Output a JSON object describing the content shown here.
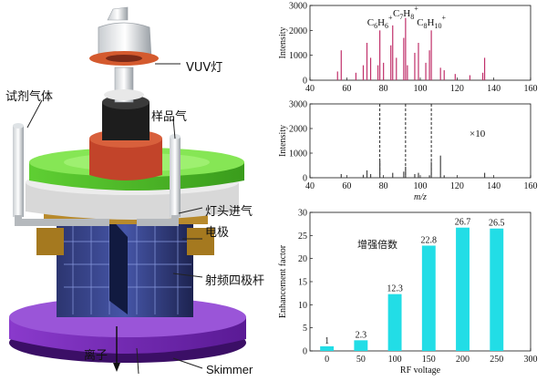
{
  "left_labels": {
    "vuv_lamp": "VUV灯",
    "reagent_gas": "试剂气体",
    "sample_gas": "样品气",
    "lamp_inlet": "灯头进气",
    "electrode": "电极",
    "rf_quadrupole": "射频四极杆",
    "ions": "离子",
    "skimmer": "Skimmer"
  },
  "chart_data": [
    {
      "type": "bar",
      "title": "",
      "xlabel": "",
      "ylabel": "Intensity",
      "xlim": [
        40,
        160
      ],
      "ylim": [
        0,
        3000
      ],
      "xticks": [
        "40",
        "60",
        "80",
        "100",
        "120",
        "140",
        "160"
      ],
      "yticks": [
        "0",
        "1000",
        "2000",
        "3000"
      ],
      "color": "#c0306a",
      "x": [
        55,
        57,
        65,
        69,
        71,
        73,
        77,
        78,
        80,
        84,
        85,
        87,
        91,
        92,
        93,
        97,
        99,
        103,
        105,
        106,
        111,
        113,
        119,
        127,
        134,
        135
      ],
      "values": [
        350,
        1200,
        300,
        600,
        1500,
        900,
        600,
        2000,
        700,
        1400,
        2200,
        900,
        1700,
        2500,
        600,
        1100,
        1500,
        700,
        1200,
        2000,
        500,
        400,
        250,
        200,
        300,
        900
      ],
      "annotations": [
        {
          "text": "C6H6+",
          "x": 78
        },
        {
          "text": "C7H8+",
          "x": 92
        },
        {
          "text": "C8H10+",
          "x": 106
        }
      ]
    },
    {
      "type": "bar",
      "title": "",
      "xlabel": "m/z",
      "ylabel": "Intensity",
      "xlim": [
        40,
        160
      ],
      "ylim": [
        0,
        3000
      ],
      "xticks": [
        "40",
        "60",
        "80",
        "100",
        "120",
        "140",
        "160"
      ],
      "yticks": [
        "0",
        "1000",
        "2000",
        "3000"
      ],
      "color": "#444444",
      "x": [
        57,
        69,
        71,
        73,
        78,
        85,
        91,
        92,
        97,
        99,
        105,
        106,
        111,
        113,
        135
      ],
      "values": [
        150,
        120,
        300,
        150,
        700,
        200,
        250,
        450,
        150,
        200,
        100,
        650,
        900,
        100,
        200
      ],
      "annotations": [
        {
          "text": "×10"
        }
      ],
      "dashed_markers": [
        78,
        92,
        106
      ]
    },
    {
      "type": "bar",
      "title": "",
      "xlabel": "RF voltage",
      "ylabel": "Enhancement factor",
      "xlim": [
        -25,
        300
      ],
      "ylim": [
        0,
        30
      ],
      "xticks": [
        "0",
        "50",
        "100",
        "150",
        "200",
        "250",
        "300"
      ],
      "yticks": [
        "0",
        "5",
        "10",
        "15",
        "20",
        "25",
        "30"
      ],
      "color": "#22dde6",
      "x": [
        0,
        50,
        100,
        150,
        200,
        250
      ],
      "values": [
        1,
        2.3,
        12.3,
        22.8,
        26.7,
        26.5
      ],
      "data_labels": [
        "1",
        "2.3",
        "12.3",
        "22.8",
        "26.7",
        "26.5"
      ],
      "annotations": [
        {
          "text": "增强倍数"
        }
      ]
    }
  ]
}
